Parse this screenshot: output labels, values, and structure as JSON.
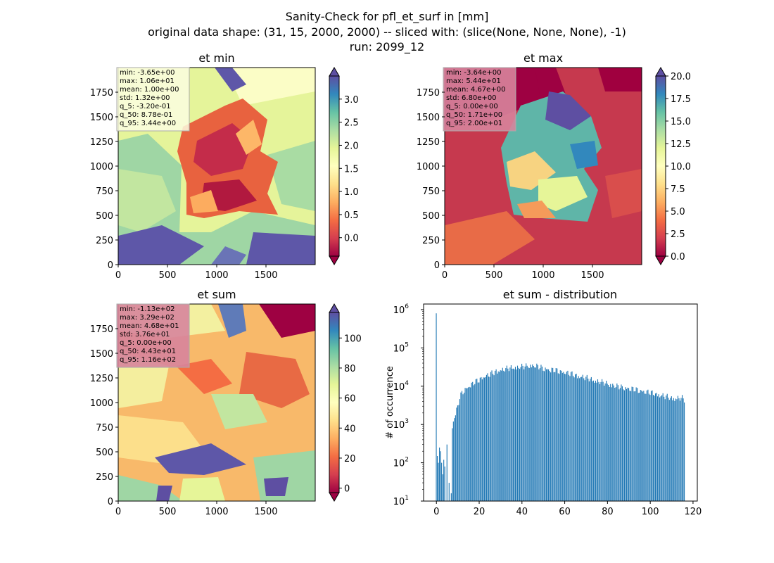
{
  "figure": {
    "title_lines": [
      "Sanity-Check for pfl_et_surf in [mm]",
      "original data shape: (31, 15, 2000, 2000) -- sliced with: (slice(None, None, None), -1)",
      "run: 2099_12"
    ]
  },
  "colors": {
    "map_low": "#9e0142",
    "map_mid": "#ffffbf",
    "map_high": "#5e4fa2",
    "hist_bar": "#1f77b4"
  },
  "chart_data": [
    {
      "type": "heatmap",
      "title": "et min",
      "colormap": "Spectral",
      "colorbar": {
        "vmin": -0.4,
        "vmax": 3.5,
        "ticks": [
          "0.0",
          "0.5",
          "1.0",
          "1.5",
          "2.0",
          "2.5",
          "3.0"
        ],
        "extend": "both"
      },
      "x_ticks": [
        "0",
        "500",
        "1000",
        "1500"
      ],
      "y_ticks": [
        "0",
        "250",
        "500",
        "750",
        "1000",
        "1250",
        "1500",
        "1750"
      ],
      "xlim": [
        0,
        2000
      ],
      "ylim": [
        0,
        2000
      ],
      "stats": [
        "min: -3.65e+00",
        "max: 1.06e+01",
        "mean: 1.00e+00",
        "std: 1.32e+00",
        "q_5: -3.20e-01",
        "q_50: 8.78e-01",
        "q_95: 3.44e+00"
      ],
      "stats_box_color": "#fbfde0"
    },
    {
      "type": "heatmap",
      "title": "et max",
      "colormap": "Spectral",
      "colorbar": {
        "vmin": 0,
        "vmax": 20,
        "ticks": [
          "0.0",
          "2.5",
          "5.0",
          "7.5",
          "10.0",
          "12.5",
          "15.0",
          "17.5",
          "20.0"
        ],
        "extend": "both"
      },
      "x_ticks": [
        "0",
        "500",
        "1000",
        "1500"
      ],
      "y_ticks": [
        "0",
        "250",
        "500",
        "750",
        "1000",
        "1250",
        "1500",
        "1750"
      ],
      "xlim": [
        0,
        2000
      ],
      "ylim": [
        0,
        2000
      ],
      "stats": [
        "min: -3.64e+00",
        "max: 5.44e+01",
        "mean: 4.67e+00",
        "std: 6.80e+00",
        "q_5: 0.00e+00",
        "q_50: 1.71e+00",
        "q_95: 2.00e+01"
      ],
      "stats_box_color": "#d7849c"
    },
    {
      "type": "heatmap",
      "title": "et sum",
      "colormap": "Spectral",
      "colorbar": {
        "vmin": -3,
        "vmax": 117,
        "ticks": [
          "0",
          "20",
          "40",
          "60",
          "80",
          "100"
        ],
        "extend": "both"
      },
      "x_ticks": [
        "0",
        "500",
        "1000",
        "1500"
      ],
      "y_ticks": [
        "0",
        "250",
        "500",
        "750",
        "1000",
        "1250",
        "1500",
        "1750"
      ],
      "xlim": [
        0,
        2000
      ],
      "ylim": [
        0,
        2000
      ],
      "stats": [
        "min: -1.13e+02",
        "max: 3.29e+02",
        "mean: 4.68e+01",
        "std: 3.76e+01",
        "q_5: 0.00e+00",
        "q_50: 4.43e+01",
        "q_95: 1.16e+02"
      ],
      "stats_box_color": "#d7849c"
    },
    {
      "type": "bar",
      "title": "et sum - distribution",
      "ylabel": "# of occurrence",
      "xlabel": "",
      "yscale": "log",
      "xlim": [
        -6,
        122
      ],
      "ylim": [
        10,
        1400000
      ],
      "x_ticks": [
        "0",
        "20",
        "40",
        "60",
        "80",
        "100",
        "120"
      ],
      "y_ticks": [
        {
          "base": "10",
          "exp": "1",
          "value": 10
        },
        {
          "base": "10",
          "exp": "2",
          "value": 100
        },
        {
          "base": "10",
          "exp": "3",
          "value": 1000
        },
        {
          "base": "10",
          "exp": "4",
          "value": 10000
        },
        {
          "base": "10",
          "exp": "5",
          "value": 100000
        },
        {
          "base": "10",
          "exp": "6",
          "value": 1000000
        }
      ],
      "bin_width": 0.5,
      "bins": [
        [
          0,
          800000
        ],
        [
          0.5,
          150
        ],
        [
          1,
          100
        ],
        [
          1.5,
          250
        ],
        [
          2,
          200
        ],
        [
          2.5,
          100
        ],
        [
          3,
          50
        ],
        [
          3.5,
          120
        ],
        [
          4,
          80
        ],
        [
          5,
          300
        ],
        [
          6,
          30
        ],
        [
          7,
          16
        ],
        [
          7.5,
          800
        ],
        [
          8,
          1300
        ],
        [
          9,
          2000
        ],
        [
          10,
          3000
        ],
        [
          11,
          5000
        ],
        [
          12,
          7000
        ],
        [
          14,
          9000
        ],
        [
          16,
          11000
        ],
        [
          18,
          13000
        ],
        [
          20,
          15000
        ],
        [
          22,
          18000
        ],
        [
          25,
          21000
        ],
        [
          28,
          25000
        ],
        [
          30,
          27000
        ],
        [
          35,
          31000
        ],
        [
          40,
          33000
        ],
        [
          45,
          36000
        ],
        [
          48,
          33000
        ],
        [
          50,
          30000
        ],
        [
          55,
          27000
        ],
        [
          60,
          24000
        ],
        [
          65,
          20000
        ],
        [
          70,
          17000
        ],
        [
          75,
          14000
        ],
        [
          80,
          12000
        ],
        [
          85,
          10000
        ],
        [
          90,
          9000
        ],
        [
          95,
          8000
        ],
        [
          100,
          7000
        ],
        [
          105,
          6000
        ],
        [
          110,
          5000
        ],
        [
          115,
          5000
        ],
        [
          116,
          4500
        ]
      ]
    }
  ]
}
